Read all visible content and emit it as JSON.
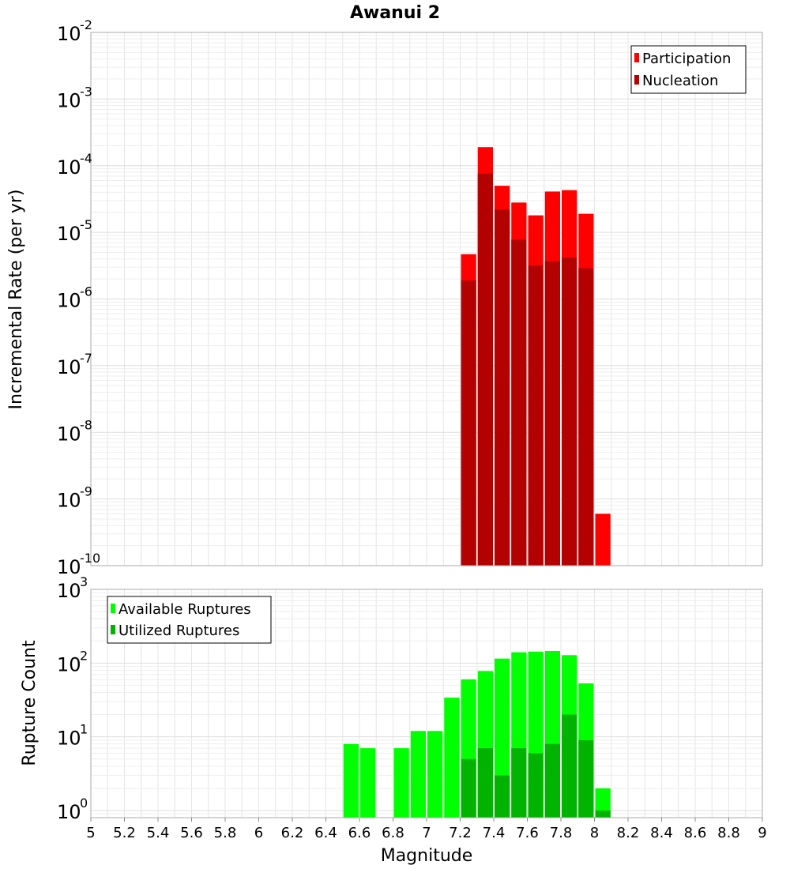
{
  "title": "Awanui 2",
  "colors": {
    "participation": "#ff0000",
    "nucleation": "#b30000",
    "available": "#00ff00",
    "utilized": "#00b300",
    "grid": "#e6e6e6",
    "frame": "#aaaaaa"
  },
  "chart_data": [
    {
      "type": "bar",
      "title": "Awanui 2",
      "xlabel": "Magnitude",
      "ylabel": "Incremental Rate (per yr)",
      "xlim": [
        5,
        9
      ],
      "y_scale": "log",
      "ylim": [
        1e-10,
        0.01
      ],
      "y_tick_exponents": [
        "-10",
        "-9",
        "-8",
        "-7",
        "-6",
        "-5",
        "-4",
        "-3",
        "-2"
      ],
      "bar_width": 0.1,
      "legend": {
        "position": "top-right",
        "entries": [
          "Participation",
          "Nucleation"
        ]
      },
      "series": [
        {
          "name": "Participation",
          "color_key": "participation",
          "x": [
            7.25,
            7.35,
            7.45,
            7.55,
            7.65,
            7.75,
            7.85,
            7.95,
            8.05
          ],
          "values": [
            4.7e-06,
            0.00019,
            5e-05,
            2.8e-05,
            1.8e-05,
            4.1e-05,
            4.3e-05,
            1.9e-05,
            6e-10
          ]
        },
        {
          "name": "Nucleation",
          "color_key": "nucleation",
          "x": [
            7.25,
            7.35,
            7.45,
            7.55,
            7.65,
            7.75,
            7.85,
            7.95
          ],
          "values": [
            1.9e-06,
            7.6e-05,
            2.2e-05,
            7.8e-06,
            3.2e-06,
            3.7e-06,
            4.2e-06,
            2.9e-06
          ]
        }
      ]
    },
    {
      "type": "bar",
      "xlabel": "Magnitude",
      "ylabel": "Rupture Count",
      "xlim": [
        5,
        9
      ],
      "y_scale": "log",
      "ylim": [
        0.8,
        1000
      ],
      "y_tick_exponents": [
        "0",
        "1",
        "2",
        "3"
      ],
      "x_ticks": [
        "5",
        "5.2",
        "5.4",
        "5.6",
        "5.8",
        "6",
        "6.2",
        "6.4",
        "6.6",
        "6.8",
        "7",
        "7.2",
        "7.4",
        "7.6",
        "7.8",
        "8",
        "8.2",
        "8.4",
        "8.6",
        "8.8",
        "9"
      ],
      "bar_width": 0.1,
      "legend": {
        "position": "top-left",
        "entries": [
          "Available Ruptures",
          "Utilized Ruptures"
        ]
      },
      "series": [
        {
          "name": "Available Ruptures",
          "color_key": "available",
          "x": [
            6.55,
            6.65,
            6.85,
            6.95,
            7.05,
            7.15,
            7.25,
            7.35,
            7.45,
            7.55,
            7.65,
            7.75,
            7.85,
            7.95,
            8.05
          ],
          "values": [
            8,
            7,
            7,
            12,
            12,
            34,
            60,
            78,
            115,
            140,
            143,
            146,
            128,
            53,
            2
          ]
        },
        {
          "name": "Utilized Ruptures",
          "color_key": "utilized",
          "x": [
            7.25,
            7.35,
            7.45,
            7.55,
            7.65,
            7.75,
            7.85,
            7.95,
            8.05
          ],
          "values": [
            5,
            7,
            3,
            7,
            6,
            8,
            20,
            9,
            1
          ]
        }
      ]
    }
  ]
}
